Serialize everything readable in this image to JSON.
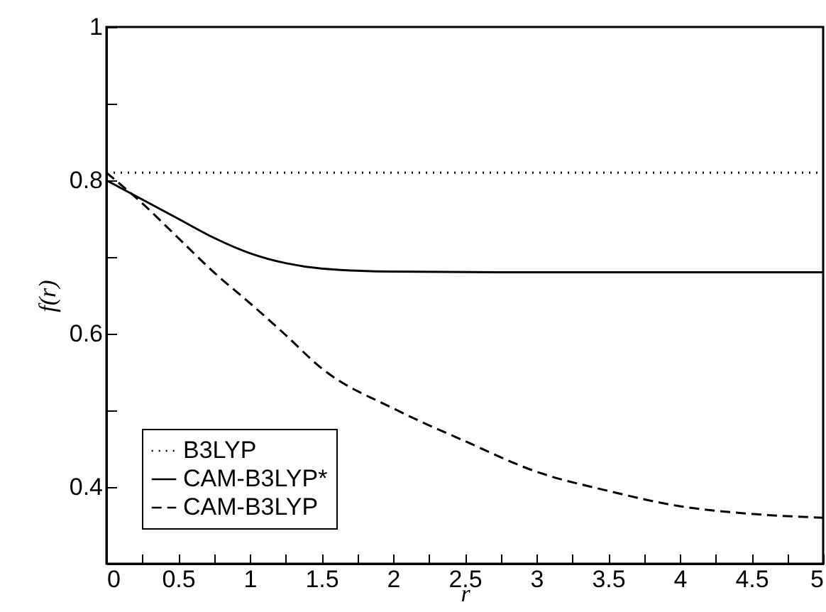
{
  "chart_data": {
    "type": "line",
    "xlabel": "r",
    "ylabel": "f(r)",
    "xlim": [
      0,
      5
    ],
    "ylim": [
      0.3,
      1
    ],
    "xticks": [
      0,
      {
        "value": 0.25,
        "label": null
      },
      0.5,
      {
        "value": 0.75,
        "label": null
      },
      1,
      {
        "value": 1.25,
        "label": null
      },
      1.5,
      {
        "value": 1.75,
        "label": null
      },
      2,
      {
        "value": 2.25,
        "label": null
      },
      2.5,
      {
        "value": 2.75,
        "label": null
      },
      3,
      {
        "value": 3.25,
        "label": null
      },
      3.5,
      {
        "value": 3.75,
        "label": null
      },
      4,
      {
        "value": 4.25,
        "label": null
      },
      4.5,
      {
        "value": 4.75,
        "label": null
      },
      5
    ],
    "yticks": [
      {
        "value": 0.3,
        "label": null
      },
      0.4,
      {
        "value": 0.5,
        "label": null
      },
      0.6,
      {
        "value": 0.7,
        "label": null
      },
      0.8,
      {
        "value": 0.9,
        "label": null
      },
      1
    ],
    "grid": false,
    "legend": "bottom left",
    "marker": "none",
    "series": [
      {
        "name": "B3LYP",
        "color": "#000000",
        "line_style": "dotted",
        "x": [
          0,
          5
        ],
        "values": [
          0.81,
          0.81
        ]
      },
      {
        "name": "CAM-B3LYP*",
        "color": "#000000",
        "line_style": "solid",
        "x": [
          0,
          0.25,
          0.5,
          0.75,
          1,
          1.25,
          1.5,
          2,
          3,
          5
        ],
        "values": [
          0.8,
          0.775,
          0.75,
          0.725,
          0.705,
          0.692,
          0.685,
          0.681,
          0.68,
          0.68
        ]
      },
      {
        "name": "CAM-B3LYP",
        "color": "#000000",
        "line_style": "dashed",
        "x": [
          0,
          0.25,
          0.5,
          0.75,
          1,
          1.24,
          1.5,
          2.03,
          2.5,
          3,
          3.5,
          4,
          4.5,
          5
        ],
        "values": [
          0.81,
          0.77,
          0.725,
          0.68,
          0.64,
          0.6,
          0.555,
          0.5,
          0.46,
          0.42,
          0.395,
          0.375,
          0.365,
          0.36
        ]
      }
    ]
  }
}
